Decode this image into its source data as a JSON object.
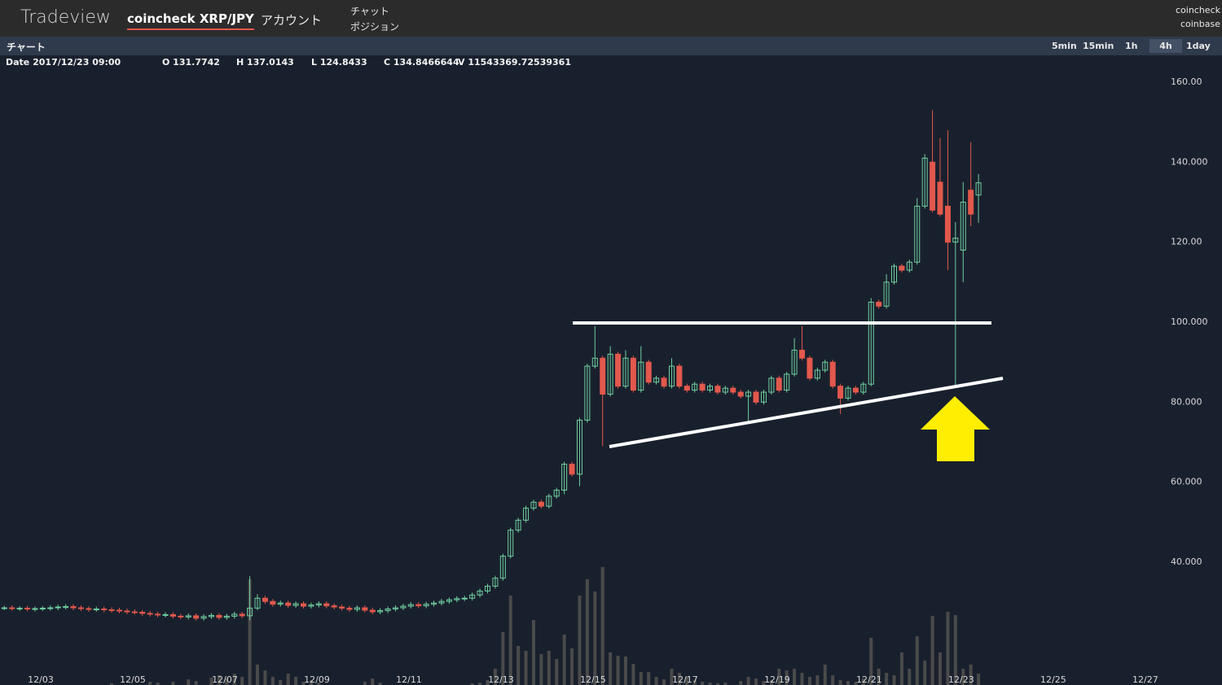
{
  "header": {
    "logo": "Tradeview",
    "pair": "coincheck XRP/JPY",
    "account": "アカウント",
    "menu": [
      "チャット",
      "ポジション"
    ],
    "exchanges": [
      "coincheck",
      "coinbase"
    ]
  },
  "toolbar": {
    "title": "チャート",
    "intervals": [
      "5min",
      "15min",
      "1h",
      "4h",
      "1day"
    ],
    "active_interval": 3
  },
  "info": {
    "date": "Date 2017/12/23 09:00",
    "open": "O 131.7742",
    "high": "H 137.0143",
    "low": "L 124.8433",
    "close": "C 134.8466644",
    "volume": "V 11543369.72539361"
  },
  "chart_data": {
    "type": "candlestick",
    "x": [
      "12/02 05:00",
      "12/02 09:00",
      "12/02 13:00",
      "12/02 17:00",
      "12/02 21:00",
      "12/03 01:00",
      "12/03 05:00",
      "12/03 09:00",
      "12/03 13:00",
      "12/03 17:00",
      "12/03 21:00",
      "12/04 01:00",
      "12/04 05:00",
      "12/04 09:00",
      "12/04 13:00",
      "12/04 17:00",
      "12/04 21:00",
      "12/05 01:00",
      "12/05 05:00",
      "12/05 09:00",
      "12/05 13:00",
      "12/05 17:00",
      "12/05 21:00",
      "12/06 01:00",
      "12/06 05:00",
      "12/06 09:00",
      "12/06 13:00",
      "12/06 17:00",
      "12/06 21:00",
      "12/07 01:00",
      "12/07 05:00",
      "12/07 09:00",
      "12/07 13:00",
      "12/07 17:00",
      "12/07 21:00",
      "12/08 01:00",
      "12/08 05:00",
      "12/08 09:00",
      "12/08 13:00",
      "12/08 17:00",
      "12/08 21:00",
      "12/09 01:00",
      "12/09 05:00",
      "12/09 09:00",
      "12/09 13:00",
      "12/09 17:00",
      "12/09 21:00",
      "12/10 01:00",
      "12/10 05:00",
      "12/10 09:00",
      "12/10 13:00",
      "12/10 17:00",
      "12/10 21:00",
      "12/11 01:00",
      "12/11 05:00",
      "12/11 09:00",
      "12/11 13:00",
      "12/11 17:00",
      "12/11 21:00",
      "12/12 01:00",
      "12/12 05:00",
      "12/12 09:00",
      "12/12 13:00",
      "12/12 17:00",
      "12/12 21:00",
      "12/13 01:00",
      "12/13 05:00",
      "12/13 09:00",
      "12/13 13:00",
      "12/13 17:00",
      "12/13 21:00",
      "12/14 01:00",
      "12/14 05:00",
      "12/14 09:00",
      "12/14 13:00",
      "12/14 17:00",
      "12/14 21:00",
      "12/15 01:00",
      "12/15 05:00",
      "12/15 09:00",
      "12/15 13:00",
      "12/15 17:00",
      "12/15 21:00",
      "12/16 01:00",
      "12/16 05:00",
      "12/16 09:00",
      "12/16 13:00",
      "12/16 17:00",
      "12/16 21:00",
      "12/17 01:00",
      "12/17 05:00",
      "12/17 09:00",
      "12/17 13:00",
      "12/17 17:00",
      "12/17 21:00",
      "12/18 01:00",
      "12/18 05:00",
      "12/18 09:00",
      "12/18 13:00",
      "12/18 17:00",
      "12/18 21:00",
      "12/19 01:00",
      "12/19 05:00",
      "12/19 09:00",
      "12/19 13:00",
      "12/19 17:00",
      "12/19 21:00",
      "12/20 01:00",
      "12/20 05:00",
      "12/20 09:00",
      "12/20 13:00",
      "12/20 17:00",
      "12/20 21:00",
      "12/21 01:00",
      "12/21 05:00",
      "12/21 09:00",
      "12/21 13:00",
      "12/21 17:00",
      "12/21 21:00",
      "12/22 01:00",
      "12/22 05:00",
      "12/22 09:00",
      "12/22 13:00",
      "12/22 17:00",
      "12/22 21:00",
      "12/23 01:00",
      "12/23 05:00",
      "12/23 09:00"
    ],
    "open": [
      28.5,
      28.6,
      28.4,
      28.5,
      28.3,
      28.4,
      28.5,
      28.6,
      28.8,
      28.9,
      28.6,
      28.4,
      28.2,
      28.3,
      28.1,
      28.0,
      27.8,
      27.6,
      27.5,
      27.2,
      27.0,
      26.8,
      26.9,
      26.5,
      26.3,
      26.6,
      26.0,
      26.4,
      26.7,
      26.2,
      26.5,
      27.0,
      26.6,
      28.5,
      31.0,
      30.2,
      29.5,
      29.8,
      29.2,
      29.6,
      29.0,
      29.3,
      29.6,
      29.1,
      28.8,
      28.5,
      28.2,
      28.6,
      28.0,
      27.6,
      27.9,
      28.3,
      28.6,
      29.0,
      29.4,
      29.1,
      29.5,
      29.8,
      30.2,
      30.6,
      30.9,
      31.0,
      31.8,
      32.8,
      34.0,
      36.0,
      41.5,
      48.0,
      50.5,
      53.5,
      55.0,
      54.0,
      56.5,
      58.0,
      64.5,
      62.0,
      75.5,
      89.0,
      91.0,
      82.0,
      92.0,
      84.0,
      91.0,
      83.0,
      90.0,
      85.0,
      86.0,
      84.0,
      89.0,
      84.0,
      83.0,
      84.5,
      83.0,
      84.0,
      82.5,
      83.5,
      82.5,
      81.5,
      82.5,
      80.0,
      82.5,
      86.0,
      83.0,
      87.0,
      93.0,
      91.0,
      86.0,
      88.0,
      90.0,
      84.0,
      81.0,
      83.5,
      82.5,
      84.5,
      105.0,
      104.0,
      110.0,
      114.0,
      113.0,
      115.0,
      129.0,
      140.0,
      135.0,
      129.0,
      120.0,
      118.0,
      133.0,
      131.7742
    ],
    "high": [
      29.1,
      29.2,
      29.0,
      29.1,
      28.9,
      29.0,
      29.2,
      29.4,
      29.5,
      29.5,
      29.2,
      29.0,
      28.9,
      28.9,
      28.7,
      28.6,
      28.4,
      28.2,
      28.1,
      27.8,
      27.6,
      27.5,
      27.5,
      27.1,
      27.2,
      27.2,
      27.0,
      27.3,
      27.3,
      27.1,
      27.6,
      27.6,
      36.5,
      32.0,
      31.6,
      30.8,
      30.4,
      30.4,
      30.2,
      30.2,
      29.9,
      30.2,
      30.2,
      29.7,
      29.4,
      29.1,
      29.2,
      29.2,
      28.6,
      28.5,
      28.9,
      29.2,
      29.6,
      30.0,
      30.0,
      30.1,
      30.4,
      30.8,
      31.2,
      31.5,
      31.6,
      32.4,
      33.4,
      34.6,
      36.6,
      42.1,
      48.6,
      51.1,
      54.1,
      55.6,
      55.6,
      57.1,
      58.6,
      65.1,
      65.1,
      76.1,
      89.6,
      99.0,
      91.6,
      94.0,
      92.6,
      93.0,
      91.6,
      94.0,
      90.6,
      86.6,
      86.6,
      91.0,
      89.6,
      84.6,
      85.1,
      85.1,
      84.6,
      84.6,
      84.1,
      84.1,
      83.1,
      83.1,
      83.1,
      83.1,
      86.6,
      86.6,
      87.6,
      96.0,
      99.0,
      91.6,
      88.6,
      90.6,
      90.6,
      84.6,
      84.1,
      84.1,
      85.1,
      106.0,
      105.6,
      112.0,
      114.6,
      114.6,
      115.6,
      131.0,
      142.0,
      153.0,
      146.0,
      148.0,
      125.0,
      135.0,
      145.0,
      137.0143
    ],
    "low": [
      28.0,
      27.9,
      27.8,
      27.7,
      27.7,
      27.8,
      27.9,
      28.0,
      28.2,
      28.0,
      27.8,
      27.6,
      27.6,
      27.5,
      27.4,
      27.2,
      27.0,
      26.9,
      26.6,
      26.4,
      26.2,
      26.2,
      25.9,
      25.7,
      25.7,
      25.4,
      25.4,
      25.8,
      25.6,
      25.6,
      25.9,
      26.0,
      25.5,
      28.0,
      29.6,
      28.9,
      28.9,
      28.6,
      28.6,
      28.4,
      28.4,
      28.7,
      28.5,
      28.2,
      27.9,
      27.6,
      27.6,
      27.4,
      27.0,
      27.0,
      27.3,
      27.7,
      28.0,
      28.4,
      28.5,
      28.5,
      28.9,
      29.2,
      29.6,
      30.0,
      30.3,
      30.4,
      31.2,
      32.2,
      33.4,
      35.4,
      40.9,
      47.4,
      49.9,
      52.9,
      53.4,
      53.4,
      55.9,
      57.0,
      61.4,
      59.0,
      74.9,
      88.4,
      69.0,
      81.4,
      83.4,
      83.4,
      82.4,
      82.4,
      84.4,
      84.4,
      83.4,
      83.4,
      83.4,
      82.4,
      82.4,
      82.4,
      82.4,
      81.9,
      81.9,
      81.9,
      80.9,
      75.0,
      79.4,
      79.4,
      81.9,
      82.4,
      82.4,
      86.4,
      90.4,
      85.4,
      85.4,
      87.4,
      83.4,
      77.0,
      80.4,
      81.9,
      81.9,
      84.0,
      103.4,
      103.4,
      109.4,
      112.4,
      112.4,
      114.4,
      128.4,
      127.4,
      126.4,
      113.0,
      84.0,
      110.0,
      124.0,
      124.8433
    ],
    "close": [
      28.6,
      28.4,
      28.5,
      28.3,
      28.4,
      28.5,
      28.6,
      28.8,
      28.9,
      28.6,
      28.4,
      28.2,
      28.3,
      28.1,
      28.0,
      27.8,
      27.6,
      27.5,
      27.2,
      27.0,
      26.8,
      26.9,
      26.5,
      26.3,
      26.6,
      26.0,
      26.4,
      26.7,
      26.2,
      26.5,
      27.0,
      26.6,
      28.5,
      31.0,
      30.2,
      29.5,
      29.8,
      29.2,
      29.6,
      29.0,
      29.3,
      29.6,
      29.1,
      28.8,
      28.5,
      28.2,
      28.6,
      28.0,
      27.6,
      27.9,
      28.3,
      28.6,
      29.0,
      29.4,
      29.1,
      29.5,
      29.8,
      30.2,
      30.6,
      30.9,
      31.0,
      31.8,
      32.8,
      34.0,
      36.0,
      41.5,
      48.0,
      50.5,
      53.5,
      55.0,
      54.0,
      56.5,
      58.0,
      64.5,
      62.0,
      75.5,
      89.0,
      91.0,
      82.0,
      92.0,
      84.0,
      91.0,
      83.0,
      90.0,
      85.0,
      86.0,
      84.0,
      89.0,
      84.0,
      83.0,
      84.5,
      83.0,
      84.0,
      82.5,
      83.5,
      82.5,
      81.5,
      82.5,
      80.0,
      82.5,
      86.0,
      83.0,
      87.0,
      93.0,
      91.0,
      86.0,
      88.0,
      90.0,
      84.0,
      81.0,
      83.5,
      82.5,
      84.5,
      105.0,
      104.0,
      110.0,
      114.0,
      113.0,
      115.0,
      129.0,
      141.0,
      128.0,
      127.0,
      120.0,
      121.0,
      130.0,
      127.0,
      134.8466644
    ],
    "volume": [
      0,
      0,
      0,
      0,
      0,
      0,
      0,
      0,
      0,
      0,
      0,
      0,
      0,
      0,
      2,
      0,
      0,
      0,
      0,
      4,
      3,
      0,
      4,
      0,
      7,
      5,
      0,
      9,
      12,
      8,
      14,
      10,
      130,
      25,
      18,
      10,
      6,
      14,
      10,
      4,
      6,
      3,
      0,
      0,
      0,
      0,
      0,
      4,
      8,
      3,
      0,
      0,
      0,
      0,
      0,
      0,
      0,
      0,
      0,
      0,
      0,
      2,
      3,
      6,
      20,
      65,
      110,
      48,
      42,
      80,
      38,
      42,
      32,
      62,
      45,
      110,
      130,
      115,
      145,
      40,
      36,
      35,
      26,
      16,
      16,
      10,
      7,
      20,
      15,
      10,
      6,
      4,
      3,
      2,
      3,
      0,
      5,
      10,
      8,
      5,
      6,
      20,
      18,
      20,
      15,
      10,
      12,
      25,
      12,
      6,
      5,
      4,
      8,
      58,
      20,
      15,
      12,
      40,
      20,
      60,
      30,
      85,
      40,
      90,
      86,
      20,
      25,
      14
    ],
    "up_color": "#6fd0a0",
    "down_color": "#e2584c",
    "volume_color": "#4a4a4a",
    "ylim": [
      9.3,
      166.7
    ],
    "yticks": [
      {
        "value": 40,
        "label": "40.000"
      },
      {
        "value": 60,
        "label": "60.000"
      },
      {
        "value": 80,
        "label": "80.000"
      },
      {
        "value": 100,
        "label": "100.000"
      },
      {
        "value": 120,
        "label": "120.00"
      },
      {
        "value": 140,
        "label": "140.000"
      },
      {
        "value": 160,
        "label": "160.00"
      }
    ],
    "xlim": [
      "12/02 02:45",
      "12/27 06:00"
    ],
    "xticks": [
      "12/03",
      "12/05",
      "12/07",
      "12/09",
      "12/11",
      "12/13",
      "12/15",
      "12/17",
      "12/19",
      "12/21",
      "12/23",
      "12/25",
      "12/27"
    ],
    "grid": false
  }
}
